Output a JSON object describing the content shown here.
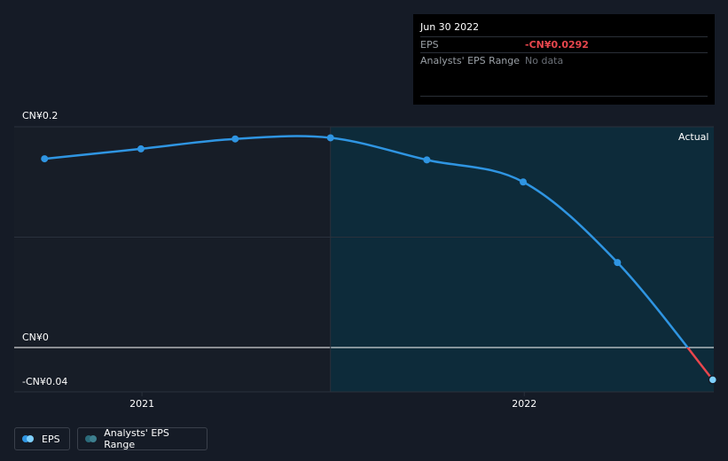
{
  "tooltip": {
    "date": "Jun 30 2022",
    "eps_label": "EPS",
    "eps_value": "-CN¥0.0292",
    "range_label": "Analysts' EPS Range",
    "range_value": "No data"
  },
  "chart_data": {
    "type": "line",
    "x_axis_type": "date",
    "x_ticks": [
      "2021",
      "2022"
    ],
    "y_ticks": [
      "CN¥0.2",
      "CN¥0",
      "-CN¥0.04"
    ],
    "ylim": [
      -0.04,
      0.2
    ],
    "xlim": [
      "2020-09-01",
      "2022-07-01"
    ],
    "actual_label": "Actual",
    "forecast_split_date": "2021-06-30",
    "series": [
      {
        "name": "EPS",
        "color": "#2f95e2",
        "negative_color": "#e8464d",
        "x": [
          "2020-09-30",
          "2020-12-31",
          "2021-03-31",
          "2021-06-30",
          "2021-09-30",
          "2021-12-31",
          "2022-03-31",
          "2022-06-30"
        ],
        "y": [
          0.171,
          0.18,
          0.189,
          0.19,
          0.17,
          0.15,
          0.077,
          -0.0292
        ]
      }
    ]
  },
  "legend": {
    "eps_label": "EPS",
    "range_label": "Analysts' EPS Range",
    "eps_color": "#2f95e2",
    "range_color": "#2b6a7a"
  },
  "colors": {
    "background": "#151b26",
    "past_shade": "#171d27",
    "actual_shade": "#0d2b3a",
    "grid": "#2a313c",
    "zero_line": "#ffffff"
  }
}
